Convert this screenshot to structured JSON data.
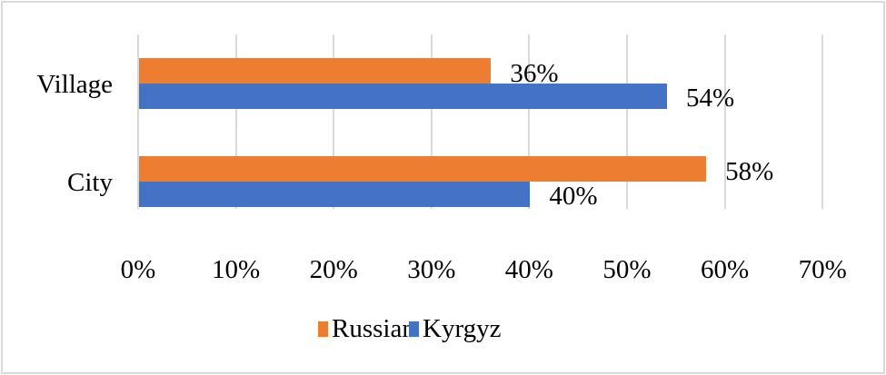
{
  "chart_data": {
    "type": "bar",
    "orientation": "horizontal",
    "title": "",
    "xlabel": "",
    "ylabel": "",
    "categories": [
      "Village",
      "City"
    ],
    "series": [
      {
        "name": "Russian",
        "color": "#ED7D31",
        "values": [
          36,
          58
        ],
        "labels": [
          "36%",
          "58%"
        ]
      },
      {
        "name": "Kyrgyz",
        "color": "#4472C4",
        "values": [
          54,
          40
        ],
        "labels": [
          "54%",
          "40%"
        ]
      }
    ],
    "xlim": [
      0,
      70
    ],
    "x_ticks": [
      "0%",
      "10%",
      "20%",
      "30%",
      "40%",
      "50%",
      "60%",
      "70%"
    ],
    "grid": true,
    "legend_position": "bottom",
    "value_format": "percent"
  },
  "legend": {
    "items": [
      {
        "label": "Russian",
        "color": "#ED7D31"
      },
      {
        "label": "Kyrgyz",
        "color": "#4472C4"
      }
    ]
  }
}
